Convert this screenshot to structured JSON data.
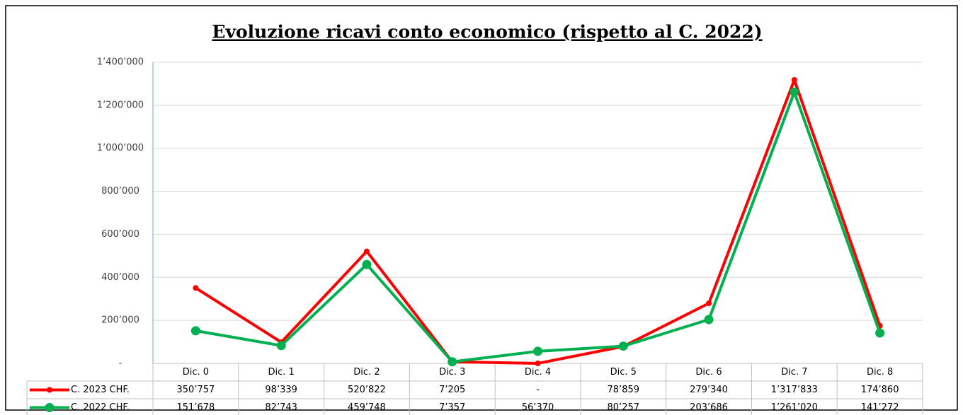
{
  "chart_data": {
    "type": "line",
    "title": "Evoluzione ricavi conto economico (rispetto al C. 2022)",
    "categories": [
      "Dic. 0",
      "Dic. 1",
      "Dic. 2",
      "Dic. 3",
      "Dic. 4",
      "Dic. 5",
      "Dic. 6",
      "Dic. 7",
      "Dic. 8"
    ],
    "series": [
      {
        "name": "C. 2023 CHF.",
        "color": "#ff0000",
        "values": [
          350757,
          98339,
          520822,
          7205,
          0,
          78859,
          279340,
          1317833,
          174860
        ],
        "value_labels": [
          "350’757",
          "98’339",
          "520’822",
          "7’205",
          "-",
          "78’859",
          "279’340",
          "1’317’833",
          "174’860"
        ]
      },
      {
        "name": "C. 2022 CHF.",
        "color": "#00b050",
        "values": [
          151678,
          82743,
          459748,
          7357,
          56370,
          80257,
          203686,
          1261020,
          141272
        ],
        "value_labels": [
          "151’678",
          "82’743",
          "459’748",
          "7’357",
          "56’370",
          "80’257",
          "203’686",
          "1’261’020",
          "141’272"
        ]
      }
    ],
    "ylim": [
      0,
      1400000
    ],
    "yticks": [
      {
        "value": 0,
        "label": "-"
      },
      {
        "value": 200000,
        "label": "200’000"
      },
      {
        "value": 400000,
        "label": "400’000"
      },
      {
        "value": 600000,
        "label": "600’000"
      },
      {
        "value": 800000,
        "label": "800’000"
      },
      {
        "value": 1000000,
        "label": "1’000’000"
      },
      {
        "value": 1200000,
        "label": "1’200’000"
      },
      {
        "value": 1400000,
        "label": "1’400’000"
      }
    ],
    "grid": true
  }
}
